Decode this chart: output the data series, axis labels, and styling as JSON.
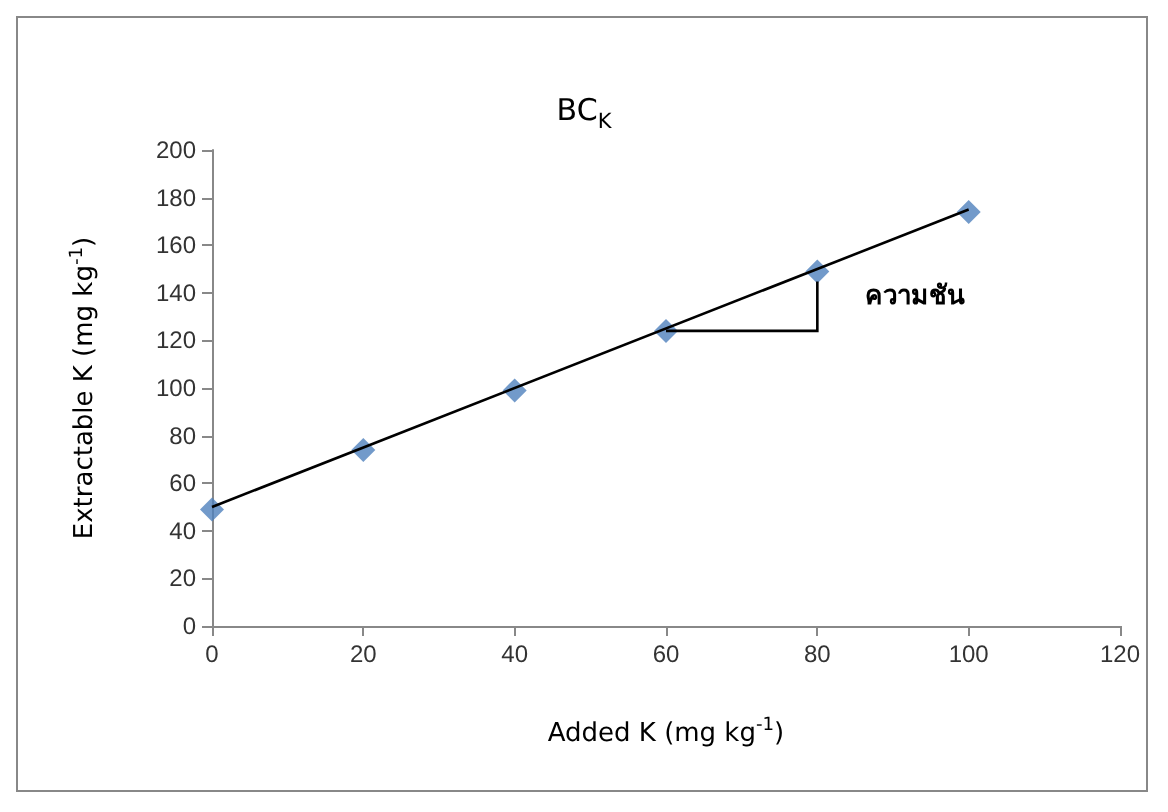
{
  "chart_data": {
    "type": "scatter",
    "title": "BC$_{K}$",
    "xlabel": "Added K (mg kg$^{-1}$)",
    "ylabel": "Extractable K (mg kg$^{-1}$)",
    "x": [
      0,
      20,
      40,
      60,
      80,
      100
    ],
    "series": [
      {
        "color": "#4f81bd",
        "marker": "diamond",
        "values": [
          49,
          74,
          99,
          124,
          149,
          174
        ]
      },
      {
        "type": "line",
        "color": "#000000",
        "marker": "none",
        "x": [
          0,
          100
        ],
        "values": [
          50,
          175
        ]
      }
    ],
    "xlim": [
      0,
      120
    ],
    "xticks": [
      0,
      20,
      40,
      60,
      80,
      100,
      120
    ],
    "ylim": [
      0,
      200
    ],
    "yticks": [
      0,
      20,
      40,
      60,
      80,
      100,
      120,
      140,
      160,
      180,
      200
    ],
    "grid": false,
    "annotations": [
      "ความชัน"
    ]
  }
}
